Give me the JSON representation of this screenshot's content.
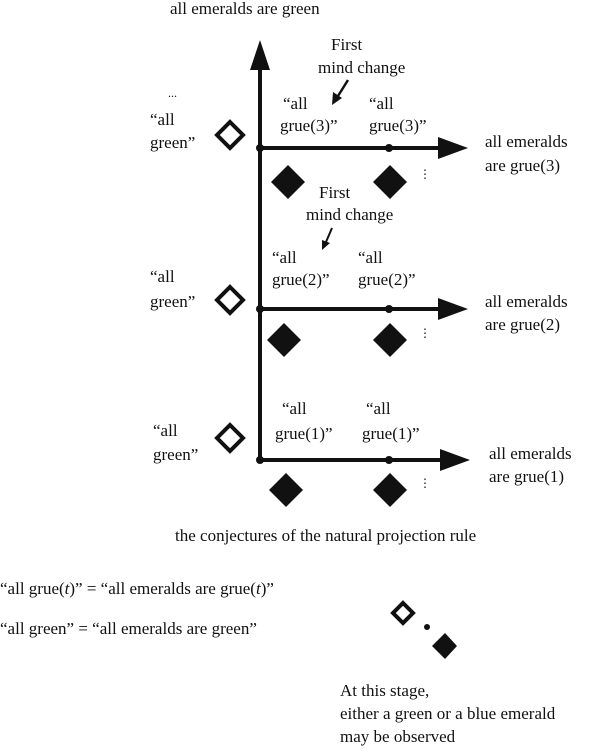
{
  "title": "all emeralds are green",
  "caption": "the conjectures of the natural projection rule",
  "ellipsis": "...",
  "vdots": "⋮",
  "rows": [
    {
      "left_label": [
        "“all",
        "green”"
      ],
      "conjectures": [
        [
          "“all",
          "grue(3)”"
        ],
        [
          "“all",
          "grue(3)”"
        ]
      ],
      "mind_change": [
        "First",
        "mind change"
      ],
      "target": [
        "all emeralds",
        "are grue(3)"
      ]
    },
    {
      "left_label": [
        "“all",
        "green”"
      ],
      "conjectures": [
        [
          "“all",
          "grue(2)”"
        ],
        [
          "“all",
          "grue(2)”"
        ]
      ],
      "mind_change": [
        "First",
        "mind change"
      ],
      "target": [
        "all emeralds",
        "are grue(2)"
      ]
    },
    {
      "left_label": [
        "“all",
        "green”"
      ],
      "conjectures": [
        [
          "“all",
          "grue(1)”"
        ],
        [
          "“all",
          "grue(1)”"
        ]
      ],
      "target": [
        "all emeralds",
        "are grue(1)"
      ]
    }
  ],
  "legend": {
    "grue_def": [
      "“all grue(",
      "t",
      ")” = “all emeralds are grue(",
      "t",
      ")”"
    ],
    "green_def": "“all green” = “all emeralds are green”",
    "stage_note": [
      "At this stage,",
      "either a green or a blue emerald",
      "may be observed"
    ]
  },
  "colors": {
    "ink": "#111111",
    "background": "#ffffff"
  }
}
